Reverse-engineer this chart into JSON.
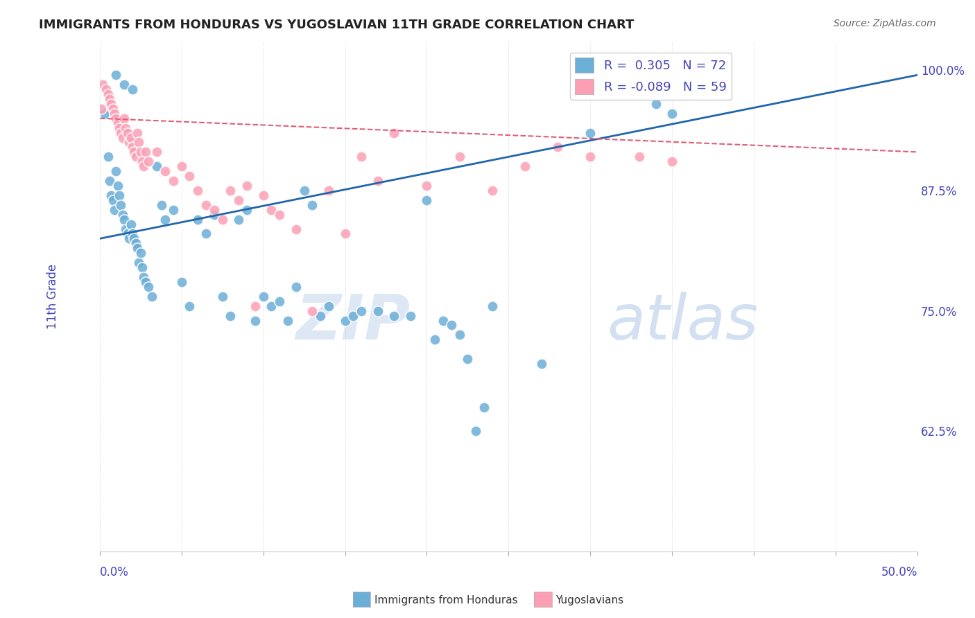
{
  "title": "IMMIGRANTS FROM HONDURAS VS YUGOSLAVIAN 11TH GRADE CORRELATION CHART",
  "source": "Source: ZipAtlas.com",
  "ylabel": "11th Grade",
  "ylabel_right_ticks": [
    62.5,
    75.0,
    87.5,
    100.0
  ],
  "ylabel_right_labels": [
    "62.5%",
    "75.0%",
    "87.5%",
    "100.0%"
  ],
  "xlim": [
    0.0,
    50.0
  ],
  "ylim": [
    50.0,
    103.0
  ],
  "watermark_zip": "ZIP",
  "watermark_atlas": "atlas",
  "legend": {
    "blue_r": "0.305",
    "blue_n": "72",
    "pink_r": "-0.089",
    "pink_n": "59"
  },
  "blue_color": "#6baed6",
  "pink_color": "#fc9fb5",
  "blue_line_color": "#2166ac",
  "pink_line_color": "#e05c7a",
  "blue_scatter": [
    [
      0.3,
      95.5
    ],
    [
      0.5,
      91.0
    ],
    [
      0.6,
      88.5
    ],
    [
      0.7,
      87.0
    ],
    [
      0.8,
      86.5
    ],
    [
      0.9,
      85.5
    ],
    [
      1.0,
      89.5
    ],
    [
      1.1,
      88.0
    ],
    [
      1.2,
      87.0
    ],
    [
      1.3,
      86.0
    ],
    [
      1.4,
      85.0
    ],
    [
      1.5,
      84.5
    ],
    [
      1.6,
      83.5
    ],
    [
      1.7,
      83.0
    ],
    [
      1.8,
      82.5
    ],
    [
      1.9,
      84.0
    ],
    [
      2.0,
      83.0
    ],
    [
      2.1,
      82.5
    ],
    [
      2.2,
      82.0
    ],
    [
      2.3,
      81.5
    ],
    [
      2.4,
      80.0
    ],
    [
      2.5,
      81.0
    ],
    [
      2.6,
      79.5
    ],
    [
      2.7,
      78.5
    ],
    [
      2.8,
      78.0
    ],
    [
      3.0,
      77.5
    ],
    [
      3.2,
      76.5
    ],
    [
      3.5,
      90.0
    ],
    [
      3.8,
      86.0
    ],
    [
      4.0,
      84.5
    ],
    [
      4.5,
      85.5
    ],
    [
      5.0,
      78.0
    ],
    [
      5.5,
      75.5
    ],
    [
      6.0,
      84.5
    ],
    [
      6.5,
      83.0
    ],
    [
      7.0,
      85.0
    ],
    [
      7.5,
      76.5
    ],
    [
      8.0,
      74.5
    ],
    [
      8.5,
      84.5
    ],
    [
      9.0,
      85.5
    ],
    [
      9.5,
      74.0
    ],
    [
      10.0,
      76.5
    ],
    [
      10.5,
      75.5
    ],
    [
      11.0,
      76.0
    ],
    [
      11.5,
      74.0
    ],
    [
      12.0,
      77.5
    ],
    [
      12.5,
      87.5
    ],
    [
      13.0,
      86.0
    ],
    [
      13.5,
      74.5
    ],
    [
      14.0,
      75.5
    ],
    [
      15.0,
      74.0
    ],
    [
      15.5,
      74.5
    ],
    [
      16.0,
      75.0
    ],
    [
      17.0,
      75.0
    ],
    [
      18.0,
      74.5
    ],
    [
      19.0,
      74.5
    ],
    [
      20.0,
      86.5
    ],
    [
      20.5,
      72.0
    ],
    [
      21.0,
      74.0
    ],
    [
      21.5,
      73.5
    ],
    [
      22.0,
      72.5
    ],
    [
      22.5,
      70.0
    ],
    [
      23.0,
      62.5
    ],
    [
      23.5,
      65.0
    ],
    [
      24.0,
      75.5
    ],
    [
      27.0,
      69.5
    ],
    [
      30.0,
      93.5
    ],
    [
      34.0,
      96.5
    ],
    [
      35.0,
      95.5
    ],
    [
      1.0,
      99.5
    ],
    [
      1.5,
      98.5
    ],
    [
      2.0,
      98.0
    ]
  ],
  "pink_scatter": [
    [
      0.2,
      98.5
    ],
    [
      0.4,
      98.0
    ],
    [
      0.5,
      97.5
    ],
    [
      0.6,
      97.0
    ],
    [
      0.7,
      96.5
    ],
    [
      0.8,
      96.0
    ],
    [
      0.9,
      95.5
    ],
    [
      1.0,
      95.0
    ],
    [
      1.1,
      94.5
    ],
    [
      1.2,
      94.0
    ],
    [
      1.3,
      93.5
    ],
    [
      1.4,
      93.0
    ],
    [
      1.5,
      95.0
    ],
    [
      1.6,
      94.0
    ],
    [
      1.7,
      93.5
    ],
    [
      1.8,
      92.5
    ],
    [
      1.9,
      93.0
    ],
    [
      2.0,
      92.0
    ],
    [
      2.1,
      91.5
    ],
    [
      2.2,
      91.0
    ],
    [
      2.3,
      93.5
    ],
    [
      2.4,
      92.5
    ],
    [
      2.5,
      91.5
    ],
    [
      2.6,
      90.5
    ],
    [
      2.7,
      90.0
    ],
    [
      2.8,
      91.5
    ],
    [
      3.0,
      90.5
    ],
    [
      3.5,
      91.5
    ],
    [
      4.0,
      89.5
    ],
    [
      4.5,
      88.5
    ],
    [
      5.0,
      90.0
    ],
    [
      5.5,
      89.0
    ],
    [
      6.0,
      87.5
    ],
    [
      6.5,
      86.0
    ],
    [
      7.0,
      85.5
    ],
    [
      7.5,
      84.5
    ],
    [
      8.0,
      87.5
    ],
    [
      8.5,
      86.5
    ],
    [
      9.0,
      88.0
    ],
    [
      9.5,
      75.5
    ],
    [
      10.0,
      87.0
    ],
    [
      10.5,
      85.5
    ],
    [
      11.0,
      85.0
    ],
    [
      12.0,
      83.5
    ],
    [
      13.0,
      75.0
    ],
    [
      14.0,
      87.5
    ],
    [
      15.0,
      83.0
    ],
    [
      16.0,
      91.0
    ],
    [
      17.0,
      88.5
    ],
    [
      18.0,
      93.5
    ],
    [
      20.0,
      88.0
    ],
    [
      22.0,
      91.0
    ],
    [
      24.0,
      87.5
    ],
    [
      26.0,
      90.0
    ],
    [
      28.0,
      92.0
    ],
    [
      30.0,
      91.0
    ],
    [
      33.0,
      91.0
    ],
    [
      35.0,
      90.5
    ],
    [
      0.1,
      96.0
    ]
  ],
  "blue_line_x": [
    0.0,
    50.0
  ],
  "blue_line_y": [
    82.5,
    99.5
  ],
  "pink_line_x": [
    0.0,
    50.0
  ],
  "pink_line_y": [
    95.0,
    91.5
  ],
  "background_color": "#ffffff",
  "grid_color": "#dddddd",
  "title_color": "#222222",
  "axis_label_color": "#4444bb",
  "tick_label_color": "#4444bb"
}
